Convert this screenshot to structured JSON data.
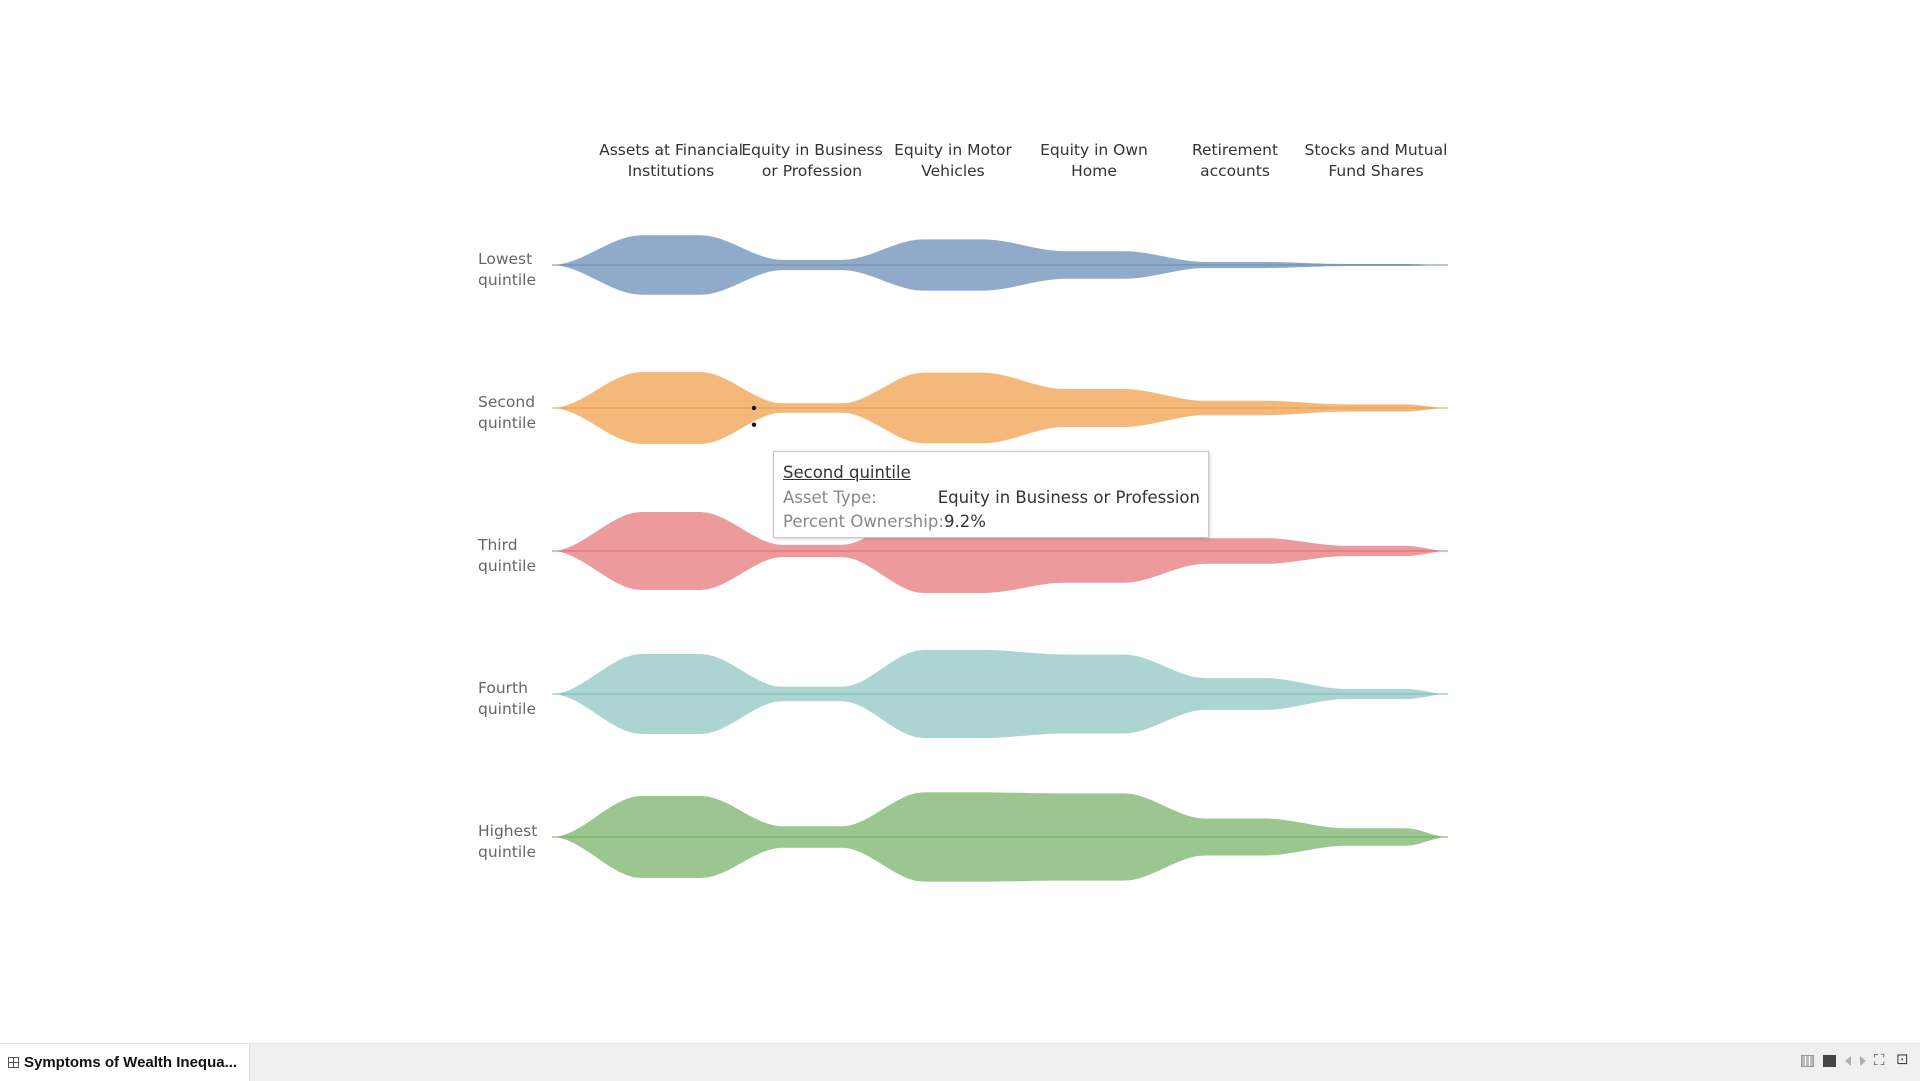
{
  "chart_data": {
    "type": "area",
    "subtype": "violin-streams",
    "categories": [
      "Assets at Financial Institutions",
      "Equity in Business or Profession",
      "Equity in Motor Vehicles",
      "Equity in Own Home",
      "Retirement accounts",
      "Stocks and Mutual Fund Shares"
    ],
    "column_labels": [
      [
        "Assets at Financial",
        "Institutions"
      ],
      [
        "Equity in Business",
        "or Profession"
      ],
      [
        "Equity in Motor",
        "Vehicles"
      ],
      [
        "Equity in Own",
        "Home"
      ],
      [
        "Retirement",
        "accounts"
      ],
      [
        "Stocks and Mutual",
        "Fund Shares"
      ]
    ],
    "series": [
      {
        "name": "Lowest quintile",
        "label_lines": [
          "Lowest",
          "quintile"
        ],
        "color": "#8fabc9",
        "line_color": "#6b8cb0",
        "values": [
          0.58,
          0.1,
          0.5,
          0.27,
          0.06,
          0.02
        ]
      },
      {
        "name": "Second quintile",
        "label_lines": [
          "Second",
          "quintile"
        ],
        "color": "#f5b87b",
        "line_color": "#e89a4f",
        "values": [
          0.7,
          0.092,
          0.69,
          0.37,
          0.14,
          0.07
        ]
      },
      {
        "name": "Third quintile",
        "label_lines": [
          "Third",
          "quintile"
        ],
        "color": "#ec9a9b",
        "line_color": "#d96f71",
        "values": [
          0.76,
          0.12,
          0.82,
          0.62,
          0.25,
          0.1
        ]
      },
      {
        "name": "Fourth quintile",
        "label_lines": [
          "Fourth",
          "quintile"
        ],
        "color": "#acd4d2",
        "line_color": "#7fb9b6",
        "values": [
          0.78,
          0.14,
          0.86,
          0.77,
          0.31,
          0.1
        ]
      },
      {
        "name": "Highest quintile",
        "label_lines": [
          "Highest",
          "quintile"
        ],
        "color": "#9bc68f",
        "line_color": "#6fa863",
        "values": [
          0.8,
          0.21,
          0.87,
          0.85,
          0.36,
          0.17
        ]
      }
    ],
    "title": "",
    "xlabel": "",
    "ylabel": "",
    "grid": false,
    "legend": "none",
    "highlight": {
      "series": "Second quintile",
      "category": "Equity in Business or Profession"
    }
  },
  "tooltip": {
    "title": "Second quintile",
    "rows": [
      {
        "key": "Asset Type:",
        "value": "Equity in Business or Profession"
      },
      {
        "key": "Percent Ownership:",
        "value": "9.2%"
      }
    ]
  },
  "footer": {
    "sheet_tab": "Symptoms of Wealth Inequa...",
    "controls": [
      "grid-view-icon",
      "square-icon",
      "prev-arrow-icon",
      "next-arrow-icon",
      "fullscreen-icon",
      "presentation-icon"
    ]
  }
}
